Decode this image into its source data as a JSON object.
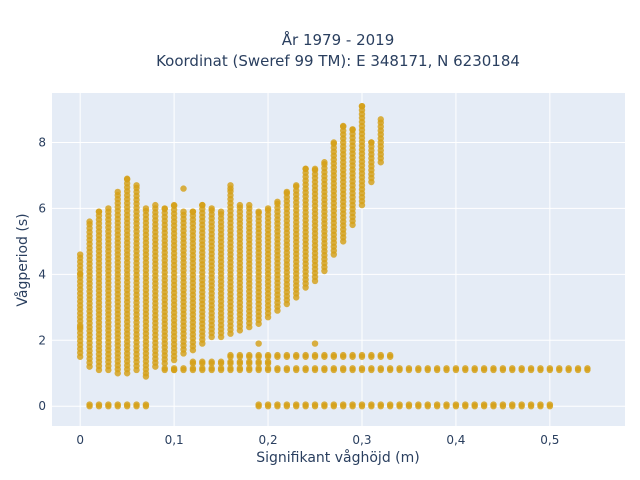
{
  "chart_data": {
    "type": "scatter",
    "title": "År 1979 - 2019",
    "subtitle": "Koordinat (Sweref 99 TM): E 348171, N 6230184",
    "xlabel": "Signifikant våghöjd (m)",
    "ylabel": "Vågperiod (s)",
    "xlim": [
      -0.03,
      0.58
    ],
    "ylim": [
      -0.6,
      9.5
    ],
    "x_ticks": [
      "0",
      "0,1",
      "0,2",
      "0,3",
      "0,4",
      "0,5"
    ],
    "y_ticks": [
      "0",
      "2",
      "4",
      "6",
      "8"
    ],
    "grid": true,
    "legend": "none",
    "marker_color": "#D4A017",
    "background_color": "#E5ECF6",
    "columns": [
      {
        "x": 0.0,
        "ymin": 1.5,
        "ymax": 4.6
      },
      {
        "x": 0.01,
        "ymin": 1.2,
        "ymax": 5.6
      },
      {
        "x": 0.02,
        "ymin": 1.1,
        "ymax": 5.9
      },
      {
        "x": 0.03,
        "ymin": 1.1,
        "ymax": 6.0
      },
      {
        "x": 0.04,
        "ymin": 1.0,
        "ymax": 6.5
      },
      {
        "x": 0.05,
        "ymin": 1.0,
        "ymax": 6.9
      },
      {
        "x": 0.06,
        "ymin": 1.1,
        "ymax": 6.7
      },
      {
        "x": 0.07,
        "ymin": 1.0,
        "ymax": 6.0
      },
      {
        "x": 0.08,
        "ymin": 1.2,
        "ymax": 6.1
      },
      {
        "x": 0.09,
        "ymin": 1.3,
        "ymax": 6.0
      },
      {
        "x": 0.1,
        "ymin": 1.4,
        "ymax": 6.1
      },
      {
        "x": 0.11,
        "ymin": 1.6,
        "ymax": 5.9
      },
      {
        "x": 0.12,
        "ymin": 1.7,
        "ymax": 5.9
      },
      {
        "x": 0.13,
        "ymin": 1.9,
        "ymax": 6.1
      },
      {
        "x": 0.14,
        "ymin": 2.1,
        "ymax": 6.0
      },
      {
        "x": 0.15,
        "ymin": 2.1,
        "ymax": 5.9
      },
      {
        "x": 0.16,
        "ymin": 2.2,
        "ymax": 6.6
      },
      {
        "x": 0.17,
        "ymin": 2.3,
        "ymax": 6.1
      },
      {
        "x": 0.18,
        "ymin": 2.4,
        "ymax": 6.1
      },
      {
        "x": 0.19,
        "ymin": 2.5,
        "ymax": 5.9
      },
      {
        "x": 0.2,
        "ymin": 2.7,
        "ymax": 6.0
      },
      {
        "x": 0.21,
        "ymin": 2.9,
        "ymax": 6.2
      },
      {
        "x": 0.22,
        "ymin": 3.1,
        "ymax": 6.5
      },
      {
        "x": 0.23,
        "ymin": 3.3,
        "ymax": 6.7
      },
      {
        "x": 0.24,
        "ymin": 3.6,
        "ymax": 7.2
      },
      {
        "x": 0.25,
        "ymin": 3.8,
        "ymax": 7.2
      },
      {
        "x": 0.26,
        "ymin": 4.1,
        "ymax": 7.4
      },
      {
        "x": 0.27,
        "ymin": 4.6,
        "ymax": 8.0
      },
      {
        "x": 0.28,
        "ymin": 5.0,
        "ymax": 8.5
      },
      {
        "x": 0.29,
        "ymin": 5.5,
        "ymax": 8.4
      },
      {
        "x": 0.3,
        "ymin": 6.1,
        "ymax": 9.1
      },
      {
        "x": 0.31,
        "ymin": 6.8,
        "ymax": 8.0
      },
      {
        "x": 0.32,
        "ymin": 7.4,
        "ymax": 8.7
      }
    ],
    "stray_points": [
      {
        "x": 0.0,
        "y": 2.4
      },
      {
        "x": 0.0,
        "y": 4.0
      },
      {
        "x": 0.11,
        "y": 6.6
      },
      {
        "x": 0.16,
        "y": 6.7
      },
      {
        "x": 0.19,
        "y": 1.9
      },
      {
        "x": 0.25,
        "y": 1.9
      },
      {
        "x": 0.07,
        "y": 0.9
      },
      {
        "x": 0.1,
        "y": 1.1
      }
    ],
    "bands": [
      {
        "y": 1.1,
        "x_from": 0.09,
        "x_to": 0.54,
        "step": 0.01
      },
      {
        "y": 1.5,
        "x_from": 0.16,
        "x_to": 0.33,
        "step": 0.01
      },
      {
        "y": 1.3,
        "x_from": 0.12,
        "x_to": 0.2,
        "step": 0.01
      },
      {
        "y": 0.0,
        "x_from": 0.01,
        "x_to": 0.07,
        "step": 0.01
      },
      {
        "y": 0.0,
        "x_from": 0.19,
        "x_to": 0.5,
        "step": 0.01
      }
    ]
  }
}
